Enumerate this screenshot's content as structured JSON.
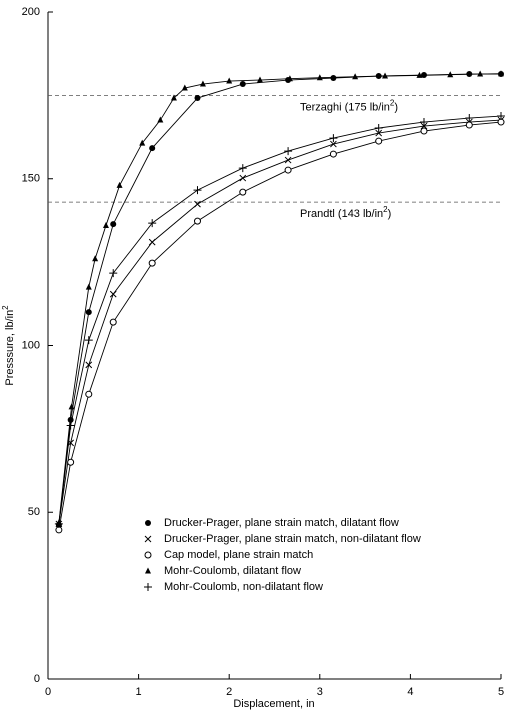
{
  "chart_data": {
    "type": "line",
    "x_label": "Displacement, in",
    "y_label": [
      "Presssure, lb/in",
      "2"
    ],
    "xlim": [
      0,
      5
    ],
    "ylim": [
      0,
      200
    ],
    "xticks": [
      0,
      1,
      2,
      3,
      4,
      5
    ],
    "yticks": [
      0,
      50,
      100,
      150,
      200
    ],
    "reference_lines": [
      {
        "value": 175,
        "label": [
          "Terzaghi  (175 lb/in",
          "2",
          ")"
        ]
      },
      {
        "value": 143,
        "label": [
          "Prandtl (143 lb/in",
          "2",
          ")"
        ]
      }
    ],
    "series": [
      {
        "name": "Drucker-Prager, plane strain match, dilatant flow",
        "color": "#000000",
        "marker": "filled-circle",
        "x": [
          0.12,
          0.25,
          0.45,
          0.72,
          1.15,
          1.65,
          2.15,
          2.65,
          3.15,
          3.65,
          4.15,
          4.65,
          5.0
        ],
        "values": [
          46.2,
          77.7,
          110,
          136.4,
          159.2,
          174.2,
          178.4,
          179.6,
          180.2,
          180.8,
          181.1,
          181.4,
          181.4
        ]
      },
      {
        "name": "Drucker-Prager, plane strain match, non-dilatant flow",
        "color": "#000000",
        "marker": "x",
        "x": [
          0.12,
          0.25,
          0.45,
          0.72,
          1.15,
          1.65,
          2.15,
          2.65,
          3.15,
          3.65,
          4.15,
          4.65,
          5.0
        ],
        "values": [
          46.5,
          70.8,
          94.2,
          115.4,
          131,
          142.4,
          150.2,
          155.6,
          160.4,
          163.7,
          165.8,
          167,
          167.6
        ]
      },
      {
        "name": "Cap model, plane strain match",
        "color": "#000000",
        "marker": "open-circle",
        "x": [
          0.12,
          0.25,
          0.45,
          0.72,
          1.15,
          1.65,
          2.15,
          2.65,
          3.15,
          3.65,
          4.15,
          4.65,
          5.0
        ],
        "values": [
          44.7,
          65,
          85.4,
          107,
          124.7,
          137.3,
          146,
          152.6,
          157.4,
          161.3,
          164.3,
          166.1,
          167
        ]
      },
      {
        "name": "Mohr-Coulomb, dilatant flow",
        "color": "#000000",
        "marker": "triangle",
        "x": [
          0.12,
          0.26,
          0.45,
          0.52,
          0.64,
          0.79,
          1.04,
          1.24,
          1.39,
          1.51,
          1.71,
          2.0,
          2.34,
          2.67,
          3.0,
          3.39,
          3.72,
          4.1,
          4.44,
          4.77,
          5.0
        ],
        "values": [
          46.8,
          81.6,
          117.5,
          126,
          136,
          148,
          160.7,
          167.6,
          174.2,
          177.2,
          178.4,
          179.3,
          179.6,
          180,
          180.3,
          180.6,
          180.8,
          181,
          181.2,
          181.4,
          181.5
        ]
      },
      {
        "name": "Mohr-Coulomb, non-dilatant flow",
        "color": "#000000",
        "marker": "plus",
        "x": [
          0.12,
          0.25,
          0.45,
          0.72,
          1.15,
          1.65,
          2.15,
          2.65,
          3.15,
          3.65,
          4.15,
          4.65,
          5.0
        ],
        "values": [
          46.5,
          76,
          101.6,
          121.7,
          136.7,
          146.6,
          153.2,
          158.3,
          162.2,
          165.2,
          167,
          168.2,
          168.8
        ]
      }
    ]
  }
}
